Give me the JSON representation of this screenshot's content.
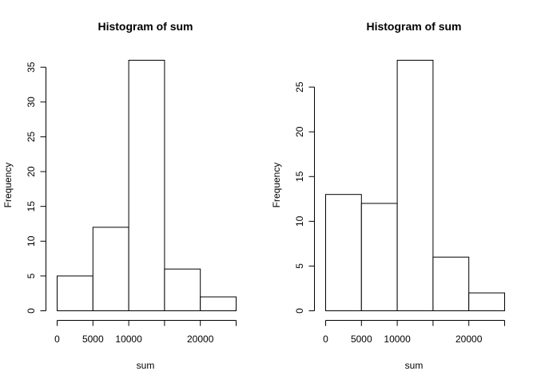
{
  "chart_data": [
    {
      "type": "bar",
      "title": "Histogram of sum",
      "xlabel": "sum",
      "ylabel": "Frequency",
      "bins": [
        [
          0,
          5000
        ],
        [
          5000,
          10000
        ],
        [
          10000,
          15000
        ],
        [
          15000,
          20000
        ],
        [
          20000,
          25000
        ]
      ],
      "values": [
        5,
        12,
        36,
        6,
        2
      ],
      "xlim": [
        0,
        25000
      ],
      "ylim": [
        0,
        36
      ],
      "xticks": [
        0,
        5000,
        10000,
        15000,
        20000,
        25000
      ],
      "xtick_labels": [
        "0",
        "5000",
        "10000",
        "",
        "20000",
        ""
      ],
      "yticks": [
        0,
        5,
        10,
        15,
        20,
        25,
        30,
        35
      ],
      "ytick_labels": [
        "0",
        "5",
        "10",
        "15",
        "20",
        "25",
        "30",
        "35"
      ],
      "grid": false
    },
    {
      "type": "bar",
      "title": "Histogram of sum",
      "xlabel": "sum",
      "ylabel": "Frequency",
      "bins": [
        [
          0,
          5000
        ],
        [
          5000,
          10000
        ],
        [
          10000,
          15000
        ],
        [
          15000,
          20000
        ],
        [
          20000,
          25000
        ]
      ],
      "values": [
        13,
        12,
        28,
        6,
        2
      ],
      "xlim": [
        0,
        25000
      ],
      "ylim": [
        0,
        28
      ],
      "xticks": [
        0,
        5000,
        10000,
        15000,
        20000,
        25000
      ],
      "xtick_labels": [
        "0",
        "5000",
        "10000",
        "",
        "20000",
        ""
      ],
      "yticks": [
        0,
        5,
        10,
        15,
        20,
        25
      ],
      "ytick_labels": [
        "0",
        "5",
        "10",
        "15",
        "20",
        "25"
      ],
      "grid": false
    }
  ]
}
